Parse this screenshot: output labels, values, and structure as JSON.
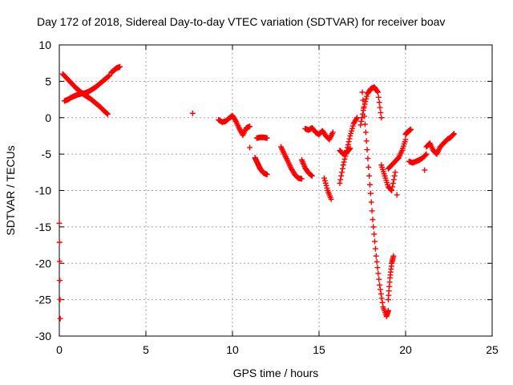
{
  "chart_data": {
    "type": "scatter",
    "title": "Day 172 of 2018, Sidereal Day-to-day VTEC variation (SDTVAR) for receiver boav",
    "xlabel": "GPS time / hours",
    "ylabel": "SDTVAR / TECUs",
    "xlim": [
      0,
      25
    ],
    "ylim": [
      -30,
      10
    ],
    "xticks": [
      0,
      5,
      10,
      15,
      20,
      25
    ],
    "yticks": [
      -30,
      -25,
      -20,
      -15,
      -10,
      -5,
      0,
      5,
      10
    ],
    "grid": true,
    "marker": "+",
    "color": "#ff0000",
    "segments": [
      {
        "name": "early-start",
        "x": [
          0.0,
          0.05
        ],
        "y": [
          -14.5,
          -27.6
        ]
      },
      {
        "name": "x-shape-a",
        "x": [
          0.2,
          0.4,
          0.6,
          0.8,
          1.0,
          1.2,
          1.4,
          1.6,
          1.8,
          2.0,
          2.2,
          2.4,
          2.6,
          2.8
        ],
        "y": [
          6.0,
          5.5,
          5.0,
          4.5,
          4.0,
          3.6,
          3.2,
          2.9,
          2.6,
          2.2,
          1.8,
          1.4,
          0.9,
          0.5
        ]
      },
      {
        "name": "x-shape-b",
        "x": [
          0.3,
          0.5,
          0.7,
          0.9,
          1.1,
          1.3,
          1.5,
          1.7,
          1.9,
          2.1,
          2.3,
          2.5,
          2.7,
          2.9
        ],
        "y": [
          2.3,
          2.5,
          2.8,
          3.0,
          3.2,
          3.3,
          3.4,
          3.6,
          3.9,
          4.2,
          4.6,
          5.0,
          5.4,
          5.8
        ]
      },
      {
        "name": "rise-3h",
        "x": [
          3.0,
          3.1,
          3.2,
          3.3,
          3.4,
          3.5
        ],
        "y": [
          6.2,
          6.4,
          6.6,
          6.8,
          6.9,
          7.0
        ]
      },
      {
        "name": "isolated-8h",
        "x": [
          7.7
        ],
        "y": [
          0.6
        ]
      },
      {
        "name": "arc-9h",
        "x": [
          9.2,
          9.4,
          9.6,
          9.8,
          10.0,
          10.2,
          10.4,
          10.6,
          10.8,
          11.0
        ],
        "y": [
          -0.3,
          -0.6,
          -0.5,
          -0.1,
          0.3,
          -0.5,
          -1.5,
          -2.4,
          -1.4,
          -1.2
        ]
      },
      {
        "name": "isolated-11h",
        "x": [
          11.0
        ],
        "y": [
          -4.1
        ]
      },
      {
        "name": "drop-11h",
        "x": [
          11.3,
          11.4,
          11.5,
          11.6,
          11.7,
          11.8,
          11.9,
          12.0
        ],
        "y": [
          -5.5,
          -6.0,
          -6.5,
          -7.0,
          -7.3,
          -7.6,
          -7.7,
          -7.8
        ]
      },
      {
        "name": "flat-12h",
        "x": [
          11.4,
          11.6,
          11.8,
          12.0
        ],
        "y": [
          -2.8,
          -2.7,
          -2.7,
          -2.8
        ]
      },
      {
        "name": "descent-13h",
        "x": [
          12.8,
          13.0,
          13.2,
          13.4,
          13.6,
          13.8,
          14.0
        ],
        "y": [
          -4.0,
          -5.0,
          -6.0,
          -7.0,
          -7.8,
          -8.3,
          -8.4
        ]
      },
      {
        "name": "bumps-14h",
        "x": [
          14.2,
          14.4,
          14.6,
          14.8,
          15.0,
          15.2,
          15.4,
          15.6,
          15.8
        ],
        "y": [
          -1.5,
          -1.7,
          -1.4,
          -2.0,
          -2.3,
          -1.8,
          -2.5,
          -3.0,
          -2.0
        ]
      },
      {
        "name": "dip-14h",
        "x": [
          14.0,
          14.2,
          14.4,
          14.6
        ],
        "y": [
          -5.8,
          -6.9,
          -7.6,
          -8.0
        ]
      },
      {
        "name": "drop-15h",
        "x": [
          15.3,
          15.5,
          15.7
        ],
        "y": [
          -8.3,
          -10.0,
          -11.2
        ]
      },
      {
        "name": "spike-16h",
        "x": [
          16.2,
          16.4,
          16.6,
          16.8,
          17.0,
          17.2
        ],
        "y": [
          -9.0,
          -6.5,
          -4.5,
          -2.5,
          -0.8,
          0.0
        ]
      },
      {
        "name": "flat-16h",
        "x": [
          16.2,
          16.4,
          16.6,
          16.8
        ],
        "y": [
          -4.5,
          -5.0,
          -4.8,
          -4.2
        ]
      },
      {
        "name": "peak-18h",
        "x": [
          17.4,
          17.6,
          17.8,
          18.0,
          18.2,
          18.4,
          18.6
        ],
        "y": [
          -1.0,
          1.5,
          3.3,
          4.0,
          4.2,
          3.5,
          0.0
        ]
      },
      {
        "name": "trough-18h",
        "x": [
          17.5,
          17.7,
          17.9,
          18.1,
          18.3,
          18.5,
          18.7,
          18.9,
          19.0
        ],
        "y": [
          3.5,
          -2.0,
          -8.0,
          -14.0,
          -19.0,
          -23.0,
          -26.0,
          -27.3,
          -26.5
        ]
      },
      {
        "name": "recovery-19h",
        "x": [
          19.0,
          19.1,
          19.2,
          19.3
        ],
        "y": [
          -25.0,
          -22.0,
          -20.0,
          -19.0
        ]
      },
      {
        "name": "wedge-19h",
        "x": [
          18.6,
          18.8,
          19.0,
          19.2,
          19.4
        ],
        "y": [
          -6.5,
          -8.0,
          -9.5,
          -10.0,
          -7.5
        ]
      },
      {
        "name": "rise-19h",
        "x": [
          19.0,
          19.2,
          19.4,
          19.6,
          19.8,
          20.0
        ],
        "y": [
          -7.0,
          -6.5,
          -6.0,
          -5.5,
          -4.5,
          -3.0
        ]
      },
      {
        "name": "isolated-19h",
        "x": [
          19.5
        ],
        "y": [
          -10.6
        ]
      },
      {
        "name": "tail-20h",
        "x": [
          20.2,
          20.4,
          20.6,
          20.8,
          21.0,
          21.2
        ],
        "y": [
          -6.0,
          -6.2,
          -6.0,
          -5.8,
          -5.5,
          -5.0
        ]
      },
      {
        "name": "peak-20h",
        "x": [
          20.0,
          20.1,
          20.2,
          20.3
        ],
        "y": [
          -2.3,
          -2.0,
          -1.8,
          -1.6
        ]
      },
      {
        "name": "isolated-21h",
        "x": [
          21.1
        ],
        "y": [
          -7.2
        ]
      },
      {
        "name": "wave-22h",
        "x": [
          21.2,
          21.4,
          21.6,
          21.8,
          22.0,
          22.2,
          22.4,
          22.6,
          22.8
        ],
        "y": [
          -4.0,
          -3.5,
          -4.5,
          -5.0,
          -4.0,
          -3.5,
          -3.0,
          -2.7,
          -2.2
        ]
      }
    ]
  }
}
